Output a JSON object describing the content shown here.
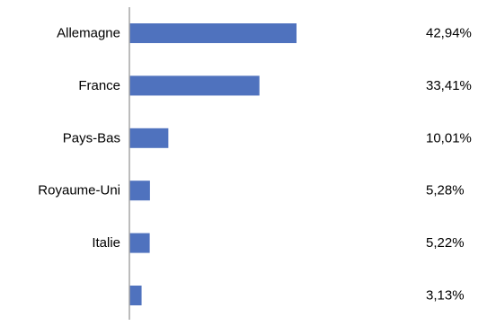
{
  "chart_data": {
    "type": "bar",
    "orientation": "horizontal",
    "categories": [
      "Allemagne",
      "France",
      "Pays-Bas",
      "Royaume-Uni",
      "Italie",
      ""
    ],
    "values": [
      42.94,
      33.41,
      10.01,
      5.28,
      5.22,
      3.13
    ],
    "value_labels": [
      "42,94%",
      "33,41%",
      "10,01%",
      "5,28%",
      "5,22%",
      "3,13%"
    ],
    "title": "",
    "xlabel": "",
    "ylabel": "",
    "grid": false,
    "legend": "none",
    "bar_color": "#4f72be",
    "axis_color": "#a6a6a6"
  }
}
